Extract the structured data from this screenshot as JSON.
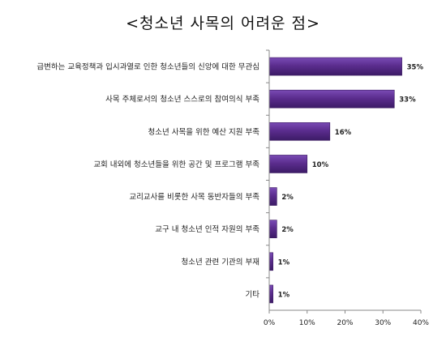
{
  "chart_data": {
    "type": "bar",
    "orientation": "horizontal",
    "title": "<청소년 사목의 어려운 점>",
    "categories": [
      "급변하는 교육정책과 입시과열로 인한 청소년들의 신앙에 대한 무관심",
      "사목 주체로서의 청소년 스스로의 참여의식 부족",
      "청소년 사목을 위한 예산 지원 부족",
      "교회 내외에 청소년들을 위한 공간 및 프로그램 부족",
      "교리교사를 비롯한 사목 동반자들의 부족",
      "교구 내 청소년 인적 자원의 부족",
      "청소년 관련 기관의 부재",
      "기타"
    ],
    "values": [
      35,
      33,
      16,
      10,
      2,
      2,
      1,
      1
    ],
    "value_labels": [
      "35%",
      "33%",
      "16%",
      "10%",
      "2%",
      "2%",
      "1%",
      "1%"
    ],
    "xlim": [
      0,
      40
    ],
    "xticks": [
      0,
      10,
      20,
      30,
      40
    ],
    "xtick_labels": [
      "0%",
      "10%",
      "20%",
      "30%",
      "40%"
    ],
    "grid": false,
    "legend": false,
    "bar_color": "#5b2d8e",
    "bar_edge_color": "#3a1a60"
  }
}
